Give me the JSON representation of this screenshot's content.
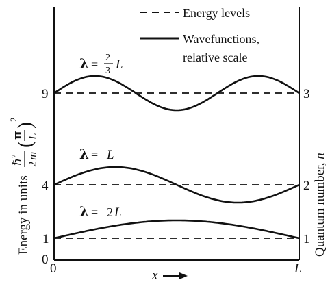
{
  "legend": {
    "dashed_label": "Energy levels",
    "solid_label_line1": "Wavefunctions,",
    "solid_label_line2": "relative scale"
  },
  "axes": {
    "left_ticks": [
      "9",
      "4",
      "1",
      "0"
    ],
    "right_ticks": [
      "3",
      "2",
      "1"
    ],
    "x_start": "0",
    "x_end": "L",
    "x_label": "x",
    "left_axis_label": "Energy in units",
    "right_axis_label": "Quantum number, n"
  },
  "levels": [
    {
      "n": 3,
      "energy": 9,
      "wavelength_label": "λ = 2/3 L"
    },
    {
      "n": 2,
      "energy": 4,
      "wavelength_label": "λ = L"
    },
    {
      "n": 1,
      "energy": 1,
      "wavelength_label": "λ = 2L"
    }
  ]
}
